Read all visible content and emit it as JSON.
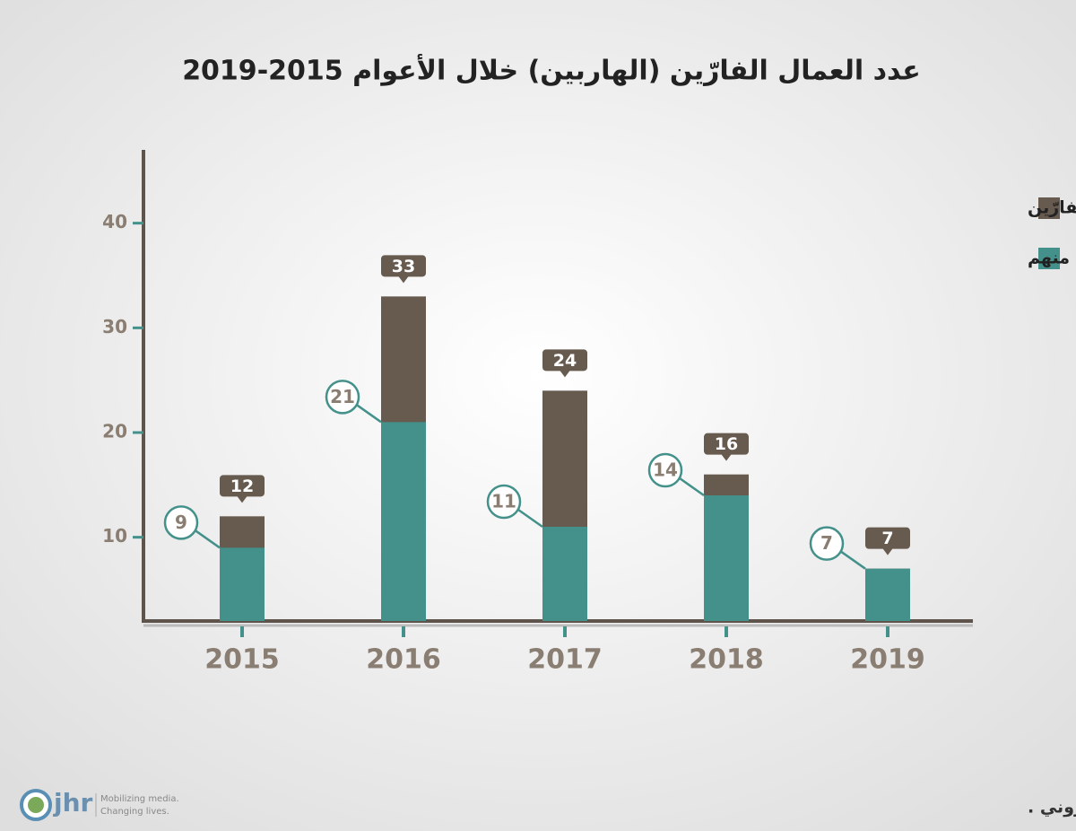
{
  "chart_data": {
    "type": "bar",
    "title": "عدد العمال الفارّين (الهاربين) خلال الأعوام 2015-2019",
    "categories": [
      "2015",
      "2016",
      "2017",
      "2018",
      "2019"
    ],
    "series": [
      {
        "name": "عدد العمال الفارّين",
        "color": "#675a4f",
        "values": [
          12,
          33,
          24,
          16,
          7
        ]
      },
      {
        "name": "عدد المصريين منهم",
        "color": "#43918a",
        "values": [
          9,
          21,
          11,
          14,
          7
        ]
      }
    ],
    "ylim": [
      2,
      47
    ],
    "yticks": [
      10,
      20,
      30,
      40
    ],
    "legend": "top-right",
    "source": "المصدر: وزارة العمل، مديرية تكنولوجيا المعلومات والتحول الإلكتروني .",
    "logo": {
      "name": "jhr",
      "tagline": [
        "Mobilizing media.",
        "Changing lives."
      ]
    }
  }
}
